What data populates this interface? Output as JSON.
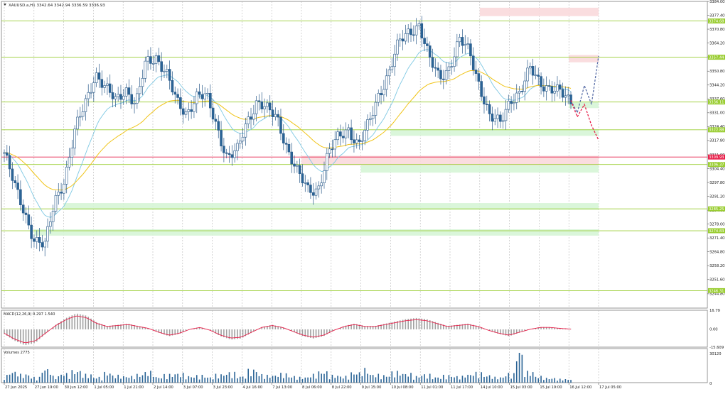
{
  "header": {
    "symbol_line": "XAUUSD.a,H1  3342.64 3342.94 3336.59 3336.93"
  },
  "chart_data": [
    {
      "type": "candlestick",
      "symbol": "XAUUSD.a,H1",
      "ohlc_label": "3342.64 3342.94 3336.59 3336.93",
      "ylim": [
        3238,
        3384
      ],
      "y_ticks": [
        "3384.00",
        "3377.40",
        "3370.80",
        "3364.20",
        "3357.60",
        "3350.80",
        "3344.20",
        "3337.60",
        "3331.00",
        "3324.40",
        "3317.80",
        "3311.00",
        "3304.40",
        "3297.80",
        "3291.20",
        "3284.60",
        "3278.00",
        "3271.40",
        "3264.80",
        "3258.20",
        "3251.60",
        "3244.80"
      ],
      "x_ticks": [
        "27 Jun 2025",
        "27 Jun 19:00",
        "30 Jun 12:00",
        "1 Jul 05:00",
        "1 Jul 21:00",
        "2 Jul 14:00",
        "3 Jul 07:00",
        "3 Jul 23:00",
        "4 Jul 16:00",
        "7 Jul 13:00",
        "8 Jul 06:00",
        "8 Jul 22:00",
        "9 Jul 15:00",
        "10 Jul 08:00",
        "11 Jul 01:00",
        "11 Jul 17:00",
        "14 Jul 10:00",
        "15 Jul 03:00",
        "15 Jul 19:00",
        "16 Jul 12:00",
        "17 Jul 05:00"
      ],
      "level_lines": [
        {
          "value": 3374.68,
          "label": "3374.68",
          "color": "#9acd32"
        },
        {
          "value": 3357.44,
          "label": "3357.44",
          "color": "#9acd32"
        },
        {
          "value": 3336.11,
          "label": "3336.11",
          "color": "#9acd32"
        },
        {
          "value": 3322.88,
          "label": "3322.88",
          "color": "#9acd32"
        },
        {
          "value": 3309.93,
          "label": "3309.93",
          "color": "#e8204a"
        },
        {
          "value": 3306.37,
          "label": "3306.37",
          "color": "#9acd32"
        },
        {
          "value": 3285.25,
          "label": "3285.25",
          "color": "#9acd32"
        },
        {
          "value": 3274.83,
          "label": "3274.83",
          "color": "#9acd32"
        },
        {
          "value": 3246.31,
          "label": "3246.31",
          "color": "#9acd32"
        }
      ],
      "zones": [
        {
          "kind": "resistance",
          "from": 3377.0,
          "to": 3381.0,
          "start_x": "14 Jul 10:00"
        },
        {
          "kind": "resistance",
          "from": 3355.0,
          "to": 3358.5,
          "start_x": "16 Jul 12:00"
        },
        {
          "kind": "resistance",
          "from": 3306.0,
          "to": 3310.5,
          "start_x": "8 Jul 06:00"
        },
        {
          "kind": "support",
          "from": 3333.2,
          "to": 3336.0,
          "start_x": "16 Jul 12:00"
        },
        {
          "kind": "support",
          "from": 3320.0,
          "to": 3323.2,
          "start_x": "10 Jul 08:00"
        },
        {
          "kind": "support",
          "from": 3302.5,
          "to": 3306.0,
          "start_x": "9 Jul 15:00"
        },
        {
          "kind": "support",
          "from": 3284.8,
          "to": 3288.0,
          "start_x": "30 Jun 12:00"
        },
        {
          "kind": "support",
          "from": 3272.5,
          "to": 3275.5,
          "start_x": "27 Jun 19:00"
        }
      ],
      "forecast": {
        "bullish": [
          3336.9,
          3331.0,
          3344.0,
          3335.0,
          3358.0
        ],
        "bearish": [
          3336.9,
          3329.0,
          3335.0,
          3325.0,
          3318.0
        ],
        "colors": {
          "bullish": "#5a6fa8",
          "bearish": "#e8204a"
        }
      },
      "close_path": [
        3312,
        3296,
        3284,
        3270,
        3267,
        3290,
        3300,
        3322,
        3336,
        3350,
        3342,
        3337,
        3343,
        3334,
        3355,
        3358,
        3350,
        3336,
        3331,
        3339,
        3338,
        3325,
        3310,
        3312,
        3327,
        3337,
        3332,
        3328,
        3314,
        3302,
        3294,
        3295,
        3311,
        3319,
        3324,
        3315,
        3325,
        3340,
        3350,
        3364,
        3370,
        3373,
        3356,
        3348,
        3353,
        3365,
        3360,
        3344,
        3328,
        3326,
        3338,
        3340,
        3352,
        3346,
        3342,
        3340,
        3337
      ],
      "ema_fast_color": "#7ec8e3",
      "ema_slow_color": "#f0c419"
    },
    {
      "type": "histogram",
      "name": "MACD",
      "label": "MACD(12,26,9) 0.297 1.540",
      "y_ticks": [
        "16.79",
        "0.00",
        "-15.609"
      ],
      "ylim": [
        -15.609,
        16.79
      ],
      "hist_path": [
        -4,
        -10,
        -14,
        -12,
        -4,
        4,
        10,
        14,
        12,
        6,
        3,
        4,
        5,
        3,
        1,
        -3,
        -6,
        -4,
        0,
        2,
        -1,
        -6,
        -9,
        -8,
        -3,
        2,
        4,
        2,
        -2,
        -6,
        -8,
        -6,
        -1,
        3,
        5,
        3,
        3,
        5,
        7,
        9,
        10,
        9,
        6,
        3,
        4,
        5,
        3,
        -1,
        -4,
        -6,
        -3,
        0,
        2,
        2,
        1,
        0.3
      ],
      "signal_color": "#e8204a"
    },
    {
      "type": "bar",
      "name": "Volumes",
      "label": "Volumes 2775",
      "y_ticks": [
        "30120",
        "0"
      ],
      "ylim": [
        0,
        30120
      ],
      "spikes": [
        8000,
        12000,
        9000,
        6000,
        15000,
        7000,
        10000,
        13000,
        9000,
        6000,
        11000,
        8000,
        7000,
        9000,
        12000,
        6000,
        9000,
        10000,
        7000,
        8000,
        6000,
        9000,
        11000,
        7000,
        14000,
        9000,
        8000,
        10000,
        7000,
        6000,
        9000,
        12000,
        8000,
        7000,
        11000,
        15000,
        9000,
        8000,
        12000,
        10000,
        7000,
        9000,
        6000,
        8000,
        7000,
        9000,
        11000,
        8000,
        6000,
        10000,
        30120,
        12000,
        7000,
        5000,
        4000,
        2775
      ]
    }
  ]
}
